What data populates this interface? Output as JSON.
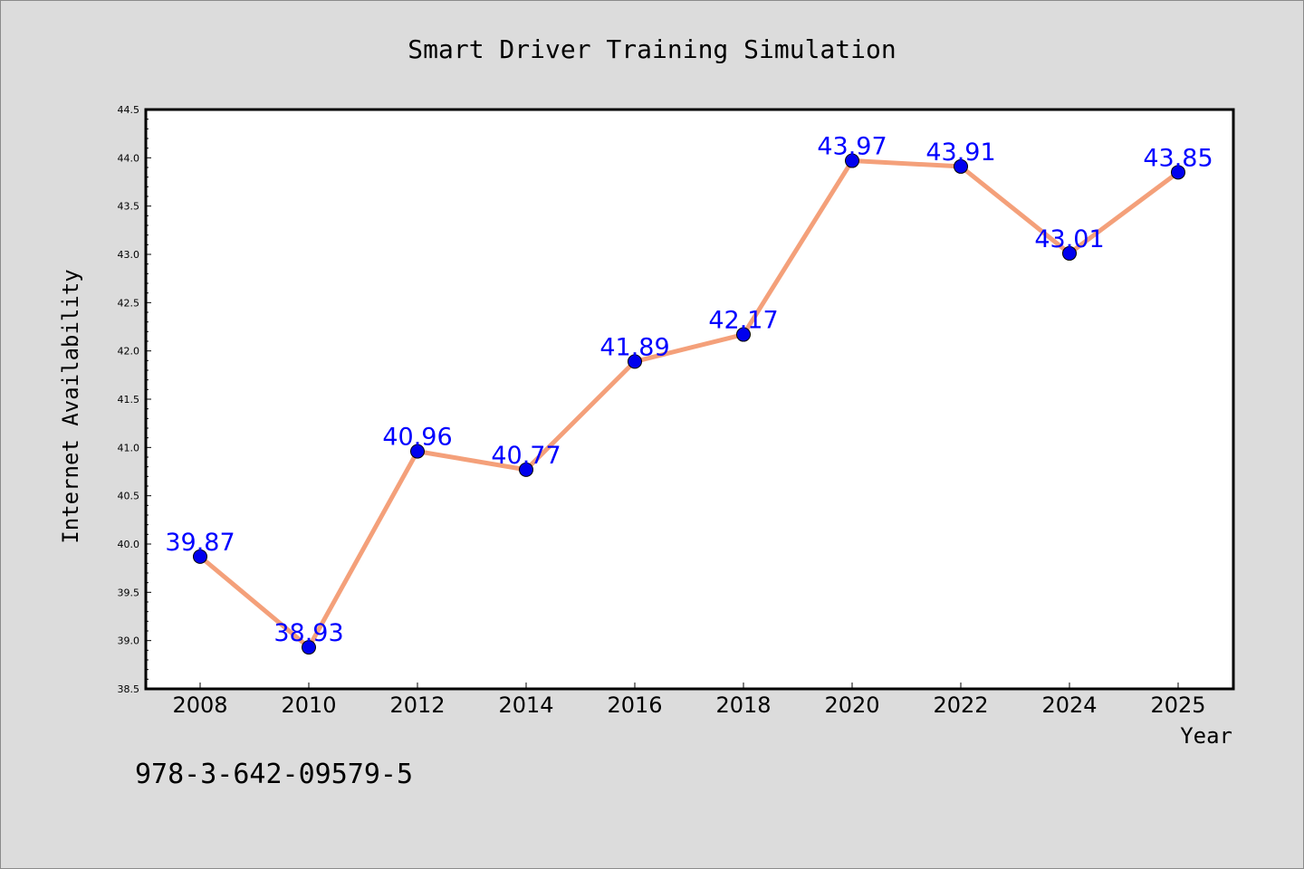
{
  "chart_data": {
    "type": "line",
    "title": "Smart Driver Training Simulation",
    "xlabel": "Year",
    "ylabel": "Internet Availability",
    "categories": [
      "2008",
      "2010",
      "2012",
      "2014",
      "2016",
      "2018",
      "2020",
      "2022",
      "2024",
      "2025"
    ],
    "series": [
      {
        "values": [
          39.87,
          38.93,
          40.96,
          40.77,
          41.89,
          42.17,
          43.97,
          43.91,
          43.01,
          43.85
        ]
      }
    ],
    "data_labels": [
      "39.87",
      "38.93",
      "40.96",
      "40.77",
      "41.89",
      "42.17",
      "43.97",
      "43.91",
      "43.01",
      "43.85"
    ],
    "ylim": [
      38.5,
      44.5
    ],
    "yticks": [
      "38.5",
      "39.0",
      "39.5",
      "40.0",
      "40.5",
      "41.0",
      "41.5",
      "42.0",
      "42.5",
      "43.0",
      "43.5",
      "44.0",
      "44.5"
    ],
    "grid": false,
    "legend": "none",
    "annotation": "978-3-642-09579-5",
    "colors": {
      "background": "#dcdcdc",
      "plot_area": "#ffffff",
      "line": "#f4a07a",
      "marker": "#0000ee",
      "data_label": "#0000ff",
      "text": "#000000"
    }
  }
}
